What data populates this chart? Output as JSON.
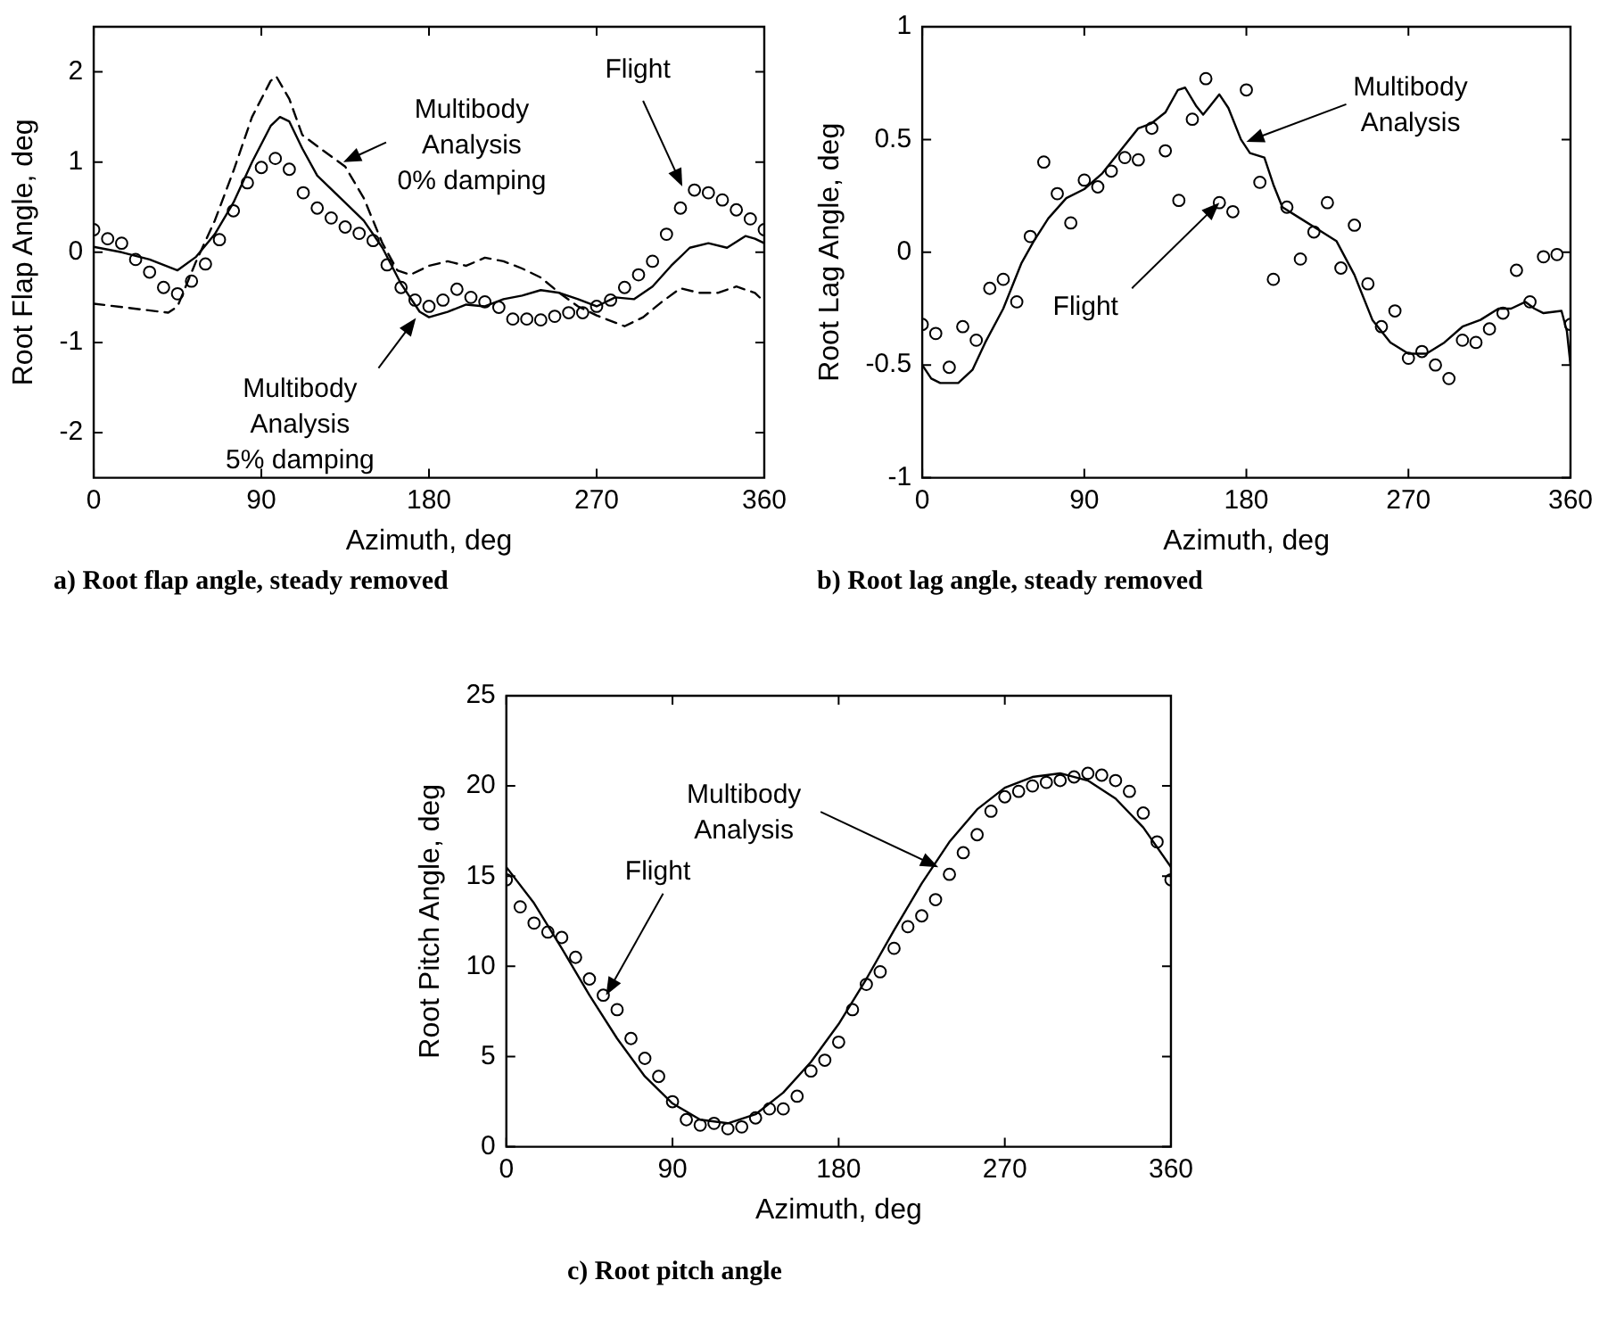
{
  "chart_data": [
    {
      "type": "scatter",
      "title": "a) Root flap angle, steady removed",
      "xlabel": "Azimuth, deg",
      "ylabel": "Root Flap Angle, deg",
      "xlim": [
        0,
        360
      ],
      "xticks": [
        0,
        90,
        180,
        270,
        360
      ],
      "ylim": [
        -2.5,
        2.5
      ],
      "yticks": [
        -2,
        -1,
        0,
        1,
        2
      ],
      "series": [
        {
          "type": "scatter",
          "marker": "circle",
          "color": "#000000",
          "x": [
            0,
            7.5,
            15,
            22.5,
            30,
            37.5,
            45,
            52.5,
            60,
            67.5,
            75,
            82.5,
            90,
            97.5,
            105,
            112.5,
            120,
            127.5,
            135,
            142.5,
            150,
            157.5,
            165,
            172.5,
            180,
            187.5,
            195,
            202.5,
            210,
            217.5,
            225,
            232.5,
            240,
            247.5,
            255,
            262.5,
            270,
            277.5,
            285,
            292.5,
            300,
            307.5,
            315,
            322.5,
            330,
            337.5,
            345,
            352.5,
            360
          ],
          "values": [
            0.25,
            0.15,
            0.1,
            -0.08,
            -0.22,
            -0.39,
            -0.46,
            -0.32,
            -0.13,
            0.14,
            0.46,
            0.77,
            0.94,
            1.04,
            0.92,
            0.66,
            0.49,
            0.38,
            0.28,
            0.21,
            0.13,
            -0.14,
            -0.39,
            -0.53,
            -0.6,
            -0.53,
            -0.41,
            -0.5,
            -0.55,
            -0.61,
            -0.74,
            -0.74,
            -0.75,
            -0.71,
            -0.67,
            -0.67,
            -0.6,
            -0.53,
            -0.39,
            -0.25,
            -0.1,
            0.2,
            0.49,
            0.69,
            0.66,
            0.58,
            0.47,
            0.37,
            0.25
          ]
        },
        {
          "type": "line",
          "marker": "none",
          "line_style": "solid",
          "color": "#000000",
          "x": [
            0,
            15,
            30,
            45,
            55,
            65,
            75,
            85,
            95,
            100,
            105,
            112,
            120,
            135,
            145,
            155,
            165,
            175,
            180,
            190,
            200,
            210,
            220,
            230,
            240,
            250,
            260,
            270,
            280,
            290,
            300,
            310,
            320,
            330,
            340,
            350,
            355,
            360
          ],
          "values": [
            0.06,
            0.0,
            -0.08,
            -0.2,
            -0.05,
            0.2,
            0.55,
            1.0,
            1.4,
            1.5,
            1.45,
            1.15,
            0.85,
            0.55,
            0.35,
            0.05,
            -0.35,
            -0.66,
            -0.72,
            -0.66,
            -0.58,
            -0.6,
            -0.52,
            -0.48,
            -0.42,
            -0.45,
            -0.52,
            -0.6,
            -0.5,
            -0.52,
            -0.38,
            -0.15,
            0.05,
            0.1,
            0.05,
            0.18,
            0.15,
            0.1
          ]
        },
        {
          "type": "line",
          "marker": "none",
          "line_style": "dashed",
          "color": "#000000",
          "x": [
            0,
            40,
            45,
            55,
            65,
            75,
            85,
            95,
            98,
            105,
            112,
            125,
            135,
            145,
            155,
            163,
            170,
            180,
            190,
            200,
            210,
            220,
            230,
            240,
            250,
            260,
            270,
            285,
            295,
            305,
            315,
            325,
            335,
            345,
            355,
            360
          ],
          "values": [
            -0.57,
            -0.67,
            -0.6,
            -0.1,
            0.35,
            0.9,
            1.5,
            1.9,
            1.95,
            1.7,
            1.3,
            1.1,
            0.95,
            0.6,
            0.1,
            -0.2,
            -0.25,
            -0.15,
            -0.1,
            -0.15,
            -0.06,
            -0.1,
            -0.18,
            -0.28,
            -0.45,
            -0.6,
            -0.7,
            -0.82,
            -0.72,
            -0.55,
            -0.4,
            -0.45,
            -0.45,
            -0.38,
            -0.45,
            -0.55
          ]
        }
      ],
      "annotations": [
        {
          "text": "Multibody\nAnalysis\n0% damping",
          "x": 134,
          "y": 1.0
        },
        {
          "text": "Flight",
          "x": 316,
          "y": 0.73
        },
        {
          "text": "Multibody\nAnalysis\n5% damping",
          "x": 173,
          "y": -0.73
        }
      ]
    },
    {
      "type": "scatter",
      "title": "b) Root lag angle, steady removed",
      "xlabel": "Azimuth, deg",
      "ylabel": "Root Lag Angle, deg",
      "xlim": [
        0,
        360
      ],
      "xticks": [
        0,
        90,
        180,
        270,
        360
      ],
      "ylim": [
        -1,
        1
      ],
      "yticks": [
        -1,
        -0.5,
        0,
        0.5,
        1
      ],
      "series": [
        {
          "type": "scatter",
          "marker": "circle",
          "color": "#000000",
          "x": [
            0,
            7.5,
            15,
            22.5,
            30,
            37.5,
            45,
            52.5,
            60,
            67.5,
            75,
            82.5,
            90,
            97.5,
            105,
            112.5,
            120,
            127.5,
            135,
            142.5,
            150,
            157.5,
            165,
            172.5,
            180,
            187.5,
            195,
            202.5,
            210,
            217.5,
            225,
            232.5,
            240,
            247.5,
            255,
            262.5,
            270,
            277.5,
            285,
            292.5,
            300,
            307.5,
            315,
            322.5,
            330,
            337.5,
            345,
            352.5,
            360
          ],
          "values": [
            -0.32,
            -0.36,
            -0.51,
            -0.33,
            -0.39,
            -0.16,
            -0.12,
            -0.22,
            0.07,
            0.4,
            0.26,
            0.13,
            0.32,
            0.29,
            0.36,
            0.42,
            0.41,
            0.55,
            0.45,
            0.23,
            0.59,
            0.77,
            0.22,
            0.18,
            0.72,
            0.31,
            -0.12,
            0.2,
            -0.03,
            0.09,
            0.22,
            -0.07,
            0.12,
            -0.14,
            -0.33,
            -0.26,
            -0.47,
            -0.44,
            -0.5,
            -0.56,
            -0.39,
            -0.4,
            -0.34,
            -0.27,
            -0.08,
            -0.22,
            -0.02,
            -0.01,
            -0.32
          ]
        },
        {
          "type": "line",
          "marker": "none",
          "line_style": "solid",
          "color": "#000000",
          "x": [
            0,
            5,
            10,
            20,
            28,
            35,
            45,
            55,
            62,
            70,
            80,
            90,
            100,
            110,
            120,
            127,
            135,
            142,
            146,
            152,
            156,
            160,
            165,
            170,
            177,
            182,
            190,
            195,
            200,
            210,
            220,
            230,
            240,
            250,
            260,
            270,
            280,
            290,
            300,
            310,
            320,
            327,
            335,
            340,
            345,
            355,
            358,
            360
          ],
          "values": [
            -0.5,
            -0.56,
            -0.58,
            -0.58,
            -0.52,
            -0.4,
            -0.25,
            -0.05,
            0.05,
            0.15,
            0.24,
            0.28,
            0.35,
            0.45,
            0.55,
            0.57,
            0.62,
            0.72,
            0.73,
            0.65,
            0.61,
            0.65,
            0.7,
            0.64,
            0.5,
            0.44,
            0.42,
            0.3,
            0.2,
            0.15,
            0.1,
            0.05,
            -0.1,
            -0.3,
            -0.4,
            -0.45,
            -0.45,
            -0.4,
            -0.33,
            -0.3,
            -0.25,
            -0.25,
            -0.22,
            -0.25,
            -0.27,
            -0.26,
            -0.35,
            -0.5
          ]
        }
      ],
      "annotations": [
        {
          "text": "Multibody\nAnalysis",
          "x": 180,
          "y": 0.49
        },
        {
          "text": "Flight",
          "x": 165,
          "y": 0.22
        }
      ]
    },
    {
      "type": "scatter",
      "title": "c) Root pitch angle",
      "xlabel": "Azimuth, deg",
      "ylabel": "Root Pitch Angle, deg",
      "xlim": [
        0,
        360
      ],
      "xticks": [
        0,
        90,
        180,
        270,
        360
      ],
      "ylim": [
        0,
        25
      ],
      "yticks": [
        0,
        5,
        10,
        15,
        20,
        25
      ],
      "series": [
        {
          "type": "scatter",
          "marker": "circle",
          "color": "#000000",
          "x": [
            0,
            7.5,
            15,
            22.5,
            30,
            37.5,
            45,
            52.5,
            60,
            67.5,
            75,
            82.5,
            90,
            97.5,
            105,
            112.5,
            120,
            127.5,
            135,
            142.5,
            150,
            157.5,
            165,
            172.5,
            180,
            187.5,
            195,
            202.5,
            210,
            217.5,
            225,
            232.5,
            240,
            247.5,
            255,
            262.5,
            270,
            277.5,
            285,
            292.5,
            300,
            307.5,
            315,
            322.5,
            330,
            337.5,
            345,
            352.5,
            360
          ],
          "values": [
            14.8,
            13.3,
            12.4,
            11.9,
            11.6,
            10.5,
            9.3,
            8.4,
            7.6,
            6.0,
            4.9,
            3.9,
            2.5,
            1.5,
            1.2,
            1.3,
            1.0,
            1.1,
            1.6,
            2.1,
            2.1,
            2.8,
            4.2,
            4.8,
            5.8,
            7.6,
            9.0,
            9.7,
            11.0,
            12.2,
            12.8,
            13.7,
            15.1,
            16.3,
            17.3,
            18.6,
            19.4,
            19.7,
            20.0,
            20.2,
            20.3,
            20.5,
            20.7,
            20.6,
            20.3,
            19.7,
            18.5,
            16.9,
            14.8
          ]
        },
        {
          "type": "line",
          "marker": "none",
          "line_style": "solid",
          "color": "#000000",
          "x": [
            0,
            15,
            30,
            45,
            60,
            75,
            90,
            105,
            120,
            135,
            150,
            165,
            180,
            195,
            210,
            225,
            240,
            255,
            270,
            285,
            300,
            315,
            330,
            345,
            360
          ],
          "values": [
            15.5,
            13.5,
            11.0,
            8.4,
            6.0,
            3.9,
            2.4,
            1.5,
            1.3,
            1.8,
            3.0,
            4.7,
            6.8,
            9.3,
            12.0,
            14.6,
            16.9,
            18.7,
            19.9,
            20.5,
            20.7,
            20.3,
            19.3,
            17.7,
            15.5
          ]
        }
      ],
      "annotations": [
        {
          "text": "Multibody\nAnalysis",
          "x": 234,
          "y": 15.5
        },
        {
          "text": "Flight",
          "x": 54,
          "y": 8.4
        }
      ]
    }
  ]
}
